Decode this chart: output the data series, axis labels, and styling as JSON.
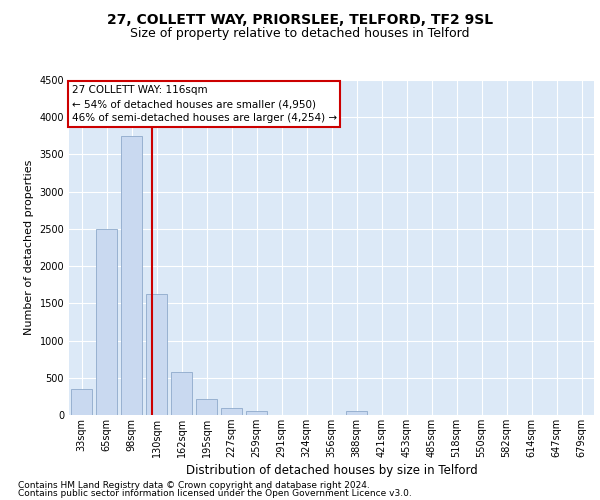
{
  "title": "27, COLLETT WAY, PRIORSLEE, TELFORD, TF2 9SL",
  "subtitle": "Size of property relative to detached houses in Telford",
  "xlabel": "Distribution of detached houses by size in Telford",
  "ylabel": "Number of detached properties",
  "categories": [
    "33sqm",
    "65sqm",
    "98sqm",
    "130sqm",
    "162sqm",
    "195sqm",
    "227sqm",
    "259sqm",
    "291sqm",
    "324sqm",
    "356sqm",
    "388sqm",
    "421sqm",
    "453sqm",
    "485sqm",
    "518sqm",
    "550sqm",
    "582sqm",
    "614sqm",
    "647sqm",
    "679sqm"
  ],
  "values": [
    350,
    2500,
    3750,
    1620,
    580,
    220,
    100,
    55,
    0,
    0,
    0,
    55,
    0,
    0,
    0,
    0,
    0,
    0,
    0,
    0,
    0
  ],
  "bar_color": "#c9d9f0",
  "bar_edge_color": "#8eaacb",
  "vline_x": 2.82,
  "vline_color": "#cc0000",
  "annotation_text": "27 COLLETT WAY: 116sqm\n← 54% of detached houses are smaller (4,950)\n46% of semi-detached houses are larger (4,254) →",
  "annotation_box_color": "#ffffff",
  "annotation_box_edge_color": "#cc0000",
  "ylim": [
    0,
    4500
  ],
  "yticks": [
    0,
    500,
    1000,
    1500,
    2000,
    2500,
    3000,
    3500,
    4000,
    4500
  ],
  "grid_color": "#ffffff",
  "bg_color": "#dce9f7",
  "footer_line1": "Contains HM Land Registry data © Crown copyright and database right 2024.",
  "footer_line2": "Contains public sector information licensed under the Open Government Licence v3.0.",
  "title_fontsize": 10,
  "subtitle_fontsize": 9,
  "xlabel_fontsize": 8.5,
  "ylabel_fontsize": 8,
  "tick_fontsize": 7,
  "footer_fontsize": 6.5,
  "annotation_fontsize": 7.5
}
